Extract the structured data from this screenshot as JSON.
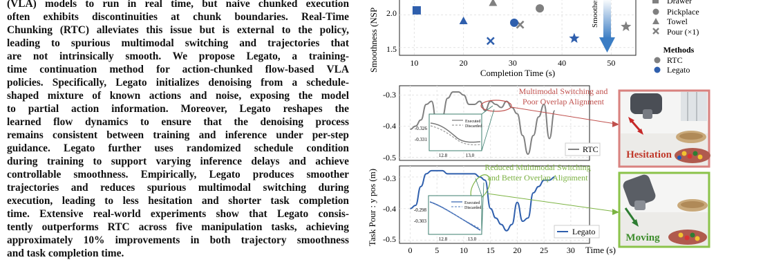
{
  "abstract": {
    "lines": [
      "(VLA) models to run in real time, but naive chunked execution",
      "often exhibits discontinuities at chunk boundaries. Real-Time",
      "Chunking (RTC) alleviates this issue but is external to the policy,",
      "leading to spurious multimodal switching and trajectories that",
      "are not intrinsically smooth. We propose Legato, a training-",
      "time continuation method for action-chunked flow-based VLA",
      "policies. Specifically, Legato initializes denoising from a schedule-",
      "shaped mixture of known actions and noise, exposing the model",
      "to partial action information. Moreover, Legato reshapes the",
      "learned flow dynamics to ensure that the denoising process",
      "remains consistent between training and inference under per-step",
      "guidance. Legato further uses randomized schedule condition",
      "during training to support varying inference delays and achieve",
      "controllable smoothness. Empirically, Legato produces smoother",
      "trajectories and reduces spurious multimodal switching during",
      "execution, leading to less hesitation and shorter task completion",
      "time. Extensive real-world experiments show that Legato consis-",
      "tently outperforms RTC across five manipulation tasks, achieving",
      "approximately 10% improvements in both trajectory smoothness",
      "and task completion time."
    ]
  },
  "figure": {
    "scatter": {
      "ylabel": "Smoothness (NSP",
      "xlabel": "Completion Time (s)",
      "xticks": [
        "10",
        "20",
        "30",
        "40",
        "50"
      ],
      "yticks": [
        "2.0",
        "1.5"
      ],
      "arrow_label": "Smoother",
      "legend_tasks": [
        "Drawer",
        "Pickplace",
        "Towel",
        "Pour (×1)"
      ],
      "legend_methods_title": "Methods",
      "legend_methods": [
        "RTC",
        "Legato"
      ]
    },
    "traj": {
      "ylabel": "Task Pour :  y pos (m)",
      "xlabel": "Time (s)",
      "xticks": [
        "0",
        "5",
        "10",
        "15",
        "20",
        "25",
        "30"
      ],
      "top_yticks": [
        "-0.3",
        "-0.4",
        "-0.5"
      ],
      "bottom_yticks": [
        "-0.3",
        "-0.4",
        "-0.5"
      ],
      "top_legend": "RTC",
      "bottom_legend": "Legato",
      "inset_top": {
        "yticks": [
          "-0.326",
          "-0.331"
        ],
        "xticks": [
          "12.8",
          "13.0"
        ],
        "legend": [
          "Executed",
          "Discarded"
        ]
      },
      "inset_bottom": {
        "yticks": [
          "-0.298",
          "-0.303"
        ],
        "xticks": [
          "12.8",
          "13.0"
        ],
        "legend": [
          "Executed",
          "Discarded"
        ]
      },
      "annot_top": [
        "Multimodal Switching and",
        "Poor Overlap Alignment"
      ],
      "annot_bottom": [
        "Reduced Multimodal Switching",
        "and Better Overlap Alignment"
      ]
    },
    "photos": {
      "top_label": "Hesitation",
      "bottom_label": "Moving"
    },
    "colors": {
      "rtc": "#808080",
      "legato": "#2f5fad",
      "red": "#c0504d",
      "green": "#7cb342",
      "arrow": "#3b7dc4"
    }
  },
  "chart_data": [
    {
      "type": "scatter",
      "xlabel": "Completion Time (s)",
      "ylabel": "Smoothness (NSP",
      "xlim": [
        7,
        55
      ],
      "series": [
        {
          "name": "RTC",
          "points": [
            {
              "task": "Towel",
              "x": 26,
              "y": 2.18
            },
            {
              "task": "Pickplace",
              "x": 35.5,
              "y": 2.1
            },
            {
              "task": "Pour (×1)",
              "x": 31.5,
              "y": 1.85
            },
            {
              "task": "Pour (×1)",
              "x": 53,
              "y": 1.82
            }
          ]
        },
        {
          "name": "Legato",
          "points": [
            {
              "task": "Drawer",
              "x": 10.5,
              "y": 2.07
            },
            {
              "task": "Towel",
              "x": 20,
              "y": 1.9
            },
            {
              "task": "Pickplace",
              "x": 30.3,
              "y": 1.88
            },
            {
              "task": "Pour (×1)",
              "x": 25.5,
              "y": 1.6
            },
            {
              "task": "Pour (×1)",
              "x": 42.5,
              "y": 1.64
            }
          ]
        }
      ]
    },
    {
      "type": "line",
      "xlabel": "Time (s)",
      "ylabel": "Task Pour :  y pos (m)",
      "series": [
        {
          "name": "RTC",
          "x": [
            0,
            1,
            2,
            3,
            4,
            5,
            6,
            7,
            8,
            9,
            10,
            11,
            12,
            13,
            14,
            15,
            16,
            17,
            18,
            19,
            20,
            21,
            22,
            23,
            24,
            25,
            26,
            27
          ],
          "y": [
            -0.41,
            -0.4,
            -0.38,
            -0.33,
            -0.32,
            -0.4,
            -0.37,
            -0.31,
            -0.29,
            -0.29,
            -0.3,
            -0.33,
            -0.33,
            -0.32,
            -0.35,
            -0.32,
            -0.33,
            -0.34,
            -0.32,
            -0.34,
            -0.36,
            -0.43,
            -0.49,
            -0.43,
            -0.37,
            -0.33,
            -0.44,
            -0.35
          ]
        },
        {
          "name": "Legato",
          "x": [
            0,
            1,
            2,
            3,
            4,
            5,
            6,
            7,
            8,
            9,
            10,
            11,
            12,
            13,
            14,
            15,
            16,
            17,
            18,
            19,
            20,
            21,
            22,
            23,
            24,
            25,
            26,
            27
          ],
          "y": [
            -0.4,
            -0.39,
            -0.33,
            -0.29,
            -0.28,
            -0.28,
            -0.28,
            -0.29,
            -0.29,
            -0.29,
            -0.29,
            -0.29,
            -0.29,
            -0.3,
            -0.31,
            -0.4,
            -0.43,
            -0.45,
            -0.47,
            -0.45,
            -0.38,
            -0.44,
            -0.43,
            -0.35,
            -0.33,
            -0.31,
            -0.31,
            -0.3
          ]
        }
      ]
    }
  ]
}
